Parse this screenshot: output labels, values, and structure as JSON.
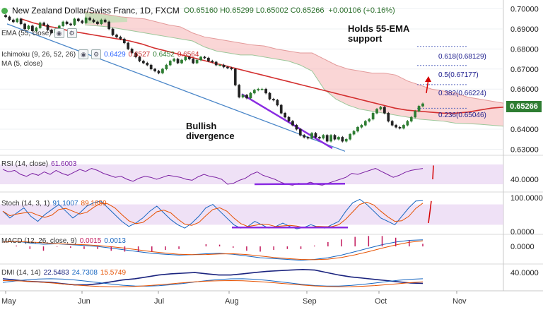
{
  "header": {
    "symbol": "New Zealand Dollar/Swiss Franc, 1D, FXCM",
    "ohlc": "O0.65160  H0.65299  L0.65002  C0.65266",
    "change": "+0.00106 (+0.16%)"
  },
  "indicators": {
    "ema": "EMA (55, close)",
    "ichimoku": "Ichimoku (9, 26, 52, 26)",
    "ichimoku_values": [
      "0.6429",
      "0.6527",
      "0.6452",
      "0.6564"
    ],
    "ma": "MA (5, close)",
    "rsi": "RSI (14, close)",
    "rsi_value": "61.6003",
    "stoch": "Stoch (14, 3, 1)",
    "stoch_values": [
      "91.1007",
      "89.1859"
    ],
    "macd": "MACD (12, 26, close, 9)",
    "macd_values": [
      "0.0015",
      "0.0013"
    ],
    "dmi": "DMI (14, 14)",
    "dmi_values": [
      "22.5483",
      "24.7308",
      "15.5749"
    ]
  },
  "annotations": {
    "ema_support": [
      "Holds 55-EMA",
      "support"
    ],
    "divergence": [
      "Bullish",
      "divergence"
    ]
  },
  "fib_levels": [
    {
      "label": "0.618(0.68129)",
      "price": 0.68129
    },
    {
      "label": "0.5(0.67177)",
      "price": 0.67177
    },
    {
      "label": "0.382(0.66224)",
      "price": 0.66224
    },
    {
      "label": "0.236(0.65046)",
      "price": 0.65046
    }
  ],
  "last_price": "0.65266",
  "colors": {
    "candle_up": "#2e7d32",
    "candle_down": "#222222",
    "ema": "#d32f2f",
    "cloud_fill": "#f5b5b5",
    "cloud_green_fill": "#b9e0b0",
    "trendline": "#4a86c8",
    "divergence_line": "#8a2be2",
    "rsi_fill": "#e8d4f2",
    "arrow": "#d50000",
    "price_tag": "#2e7d32"
  },
  "chart_data": [
    {
      "type": "candlestick",
      "panel": "price",
      "yticks": [
        "0.70000",
        "0.69000",
        "0.68000",
        "0.67000",
        "0.66000",
        "0.65000",
        "0.64000",
        "0.63000"
      ],
      "ylim": [
        0.627,
        0.703
      ],
      "xticks": [
        "May",
        "Jun",
        "Jul",
        "Aug",
        "Sep",
        "Oct",
        "Nov"
      ],
      "close": [
        0.696,
        0.6945,
        0.6935,
        0.695,
        0.6925,
        0.69,
        0.6915,
        0.689,
        0.6905,
        0.693,
        0.692,
        0.6895,
        0.688,
        0.69,
        0.6915,
        0.6935,
        0.6925,
        0.692,
        0.695,
        0.694,
        0.693,
        0.6955,
        0.6945,
        0.6935,
        0.6925,
        0.6945,
        0.6935,
        0.69,
        0.687,
        0.686,
        0.685,
        0.683,
        0.68,
        0.678,
        0.676,
        0.674,
        0.673,
        0.672,
        0.67,
        0.669,
        0.668,
        0.67,
        0.672,
        0.674,
        0.675,
        0.673,
        0.6745,
        0.676,
        0.675,
        0.673,
        0.6745,
        0.676,
        0.6755,
        0.674,
        0.6735,
        0.672,
        0.672,
        0.671,
        0.6705,
        0.67,
        0.662,
        0.656,
        0.657,
        0.6555,
        0.658,
        0.6595,
        0.66,
        0.66,
        0.658,
        0.655,
        0.6545,
        0.652,
        0.648,
        0.646,
        0.644,
        0.642,
        0.64,
        0.637,
        0.636,
        0.6355,
        0.638,
        0.636,
        0.6355,
        0.637,
        0.634,
        0.637,
        0.635,
        0.636,
        0.634,
        0.635,
        0.6375,
        0.639,
        0.641,
        0.642,
        0.644,
        0.645,
        0.648,
        0.65,
        0.651,
        0.648,
        0.644,
        0.642,
        0.641,
        0.6405,
        0.642,
        0.644,
        0.646,
        0.649,
        0.6515,
        0.6527
      ],
      "ema": [
        0.695,
        0.693,
        0.6915,
        0.6905,
        0.689,
        0.688,
        0.687,
        0.686,
        0.685,
        0.684,
        0.6825,
        0.6805,
        0.679,
        0.6775,
        0.676,
        0.6745,
        0.673,
        0.6715,
        0.67,
        0.6685,
        0.667,
        0.6655,
        0.664,
        0.6625,
        0.661,
        0.6595,
        0.658,
        0.6565,
        0.655,
        0.6535,
        0.652,
        0.6505,
        0.6495,
        0.649,
        0.6485,
        0.648,
        0.648,
        0.6485,
        0.6495,
        0.6505,
        0.651
      ],
      "cloud_upper": [
        0.6985,
        0.698,
        0.697,
        0.696,
        0.6955,
        0.695,
        0.6935,
        0.692,
        0.691,
        0.688,
        0.686,
        0.685,
        0.684,
        0.683,
        0.682,
        0.6815,
        0.68,
        0.679,
        0.678,
        0.678,
        0.675,
        0.672,
        0.67,
        0.669,
        0.668,
        0.668,
        0.667,
        0.664,
        0.662,
        0.66,
        0.659,
        0.658,
        0.656,
        0.655,
        0.654,
        0.653
      ],
      "cloud_lower": [
        0.692,
        0.6915,
        0.691,
        0.69,
        0.689,
        0.688,
        0.687,
        0.686,
        0.685,
        0.684,
        0.681,
        0.679,
        0.678,
        0.677,
        0.677,
        0.676,
        0.675,
        0.674,
        0.672,
        0.669,
        0.66,
        0.655,
        0.652,
        0.65,
        0.649,
        0.648,
        0.647,
        0.646,
        0.645,
        0.6445,
        0.644,
        0.643,
        0.6428,
        0.6425,
        0.642,
        0.6415
      ]
    },
    {
      "type": "line",
      "panel": "rsi",
      "yticks": [
        "40.0000"
      ],
      "values": [
        60,
        55,
        58,
        50,
        46,
        52,
        48,
        55,
        50,
        58,
        52,
        48,
        54,
        60,
        56,
        62,
        58,
        52,
        48,
        44,
        46,
        40,
        36,
        42,
        46,
        44,
        40,
        44,
        48,
        46,
        44,
        40,
        38,
        45,
        50,
        46,
        44,
        40,
        30,
        32,
        38,
        42,
        50,
        55,
        48,
        44,
        40,
        34,
        30,
        28,
        32,
        30,
        34,
        30,
        28,
        32,
        36,
        40,
        44,
        52,
        50,
        54,
        58,
        62,
        56,
        50,
        44,
        48,
        54,
        58,
        60,
        62
      ]
    },
    {
      "type": "line",
      "panel": "stoch",
      "yticks": [
        "100.0000",
        "0.0000"
      ],
      "values": [
        60,
        40,
        55,
        70,
        45,
        30,
        50,
        65,
        80,
        60,
        40,
        55,
        75,
        85,
        90,
        70,
        50,
        30,
        15,
        25,
        40,
        60,
        75,
        55,
        35,
        20,
        10,
        25,
        45,
        70,
        80,
        60,
        40,
        20,
        10,
        15,
        30,
        20,
        10,
        15,
        25,
        15,
        8,
        12,
        20,
        14,
        10,
        20,
        30,
        60,
        85,
        95,
        80,
        60,
        40,
        30,
        20,
        45,
        70,
        90,
        91
      ]
    },
    {
      "type": "line",
      "panel": "macd",
      "yticks": [
        "0.0000"
      ],
      "values": [
        0.001,
        0.0012,
        0.0008,
        0.0005,
        0.0006,
        0.0004,
        0.0002,
        0.0,
        -0.0004,
        -0.0008,
        -0.0012,
        -0.0016,
        -0.0018,
        -0.002,
        -0.0019,
        -0.0017,
        -0.0016,
        -0.0018,
        -0.0022,
        -0.0026,
        -0.0028,
        -0.003,
        -0.0032,
        -0.003,
        -0.0026,
        -0.002,
        -0.0012,
        -0.0004,
        0.0004,
        0.001,
        0.0014,
        0.0015
      ]
    },
    {
      "type": "line",
      "panel": "dmi",
      "yticks": [
        "40.0000"
      ],
      "values": [
        30,
        28,
        26,
        25,
        24,
        22,
        20,
        20,
        22,
        25,
        28,
        30,
        33,
        36,
        38,
        39,
        40,
        38,
        36,
        36,
        38,
        40,
        42,
        43,
        44,
        45,
        44,
        40,
        36,
        33,
        31,
        29,
        27,
        25,
        23,
        22.5
      ]
    }
  ]
}
